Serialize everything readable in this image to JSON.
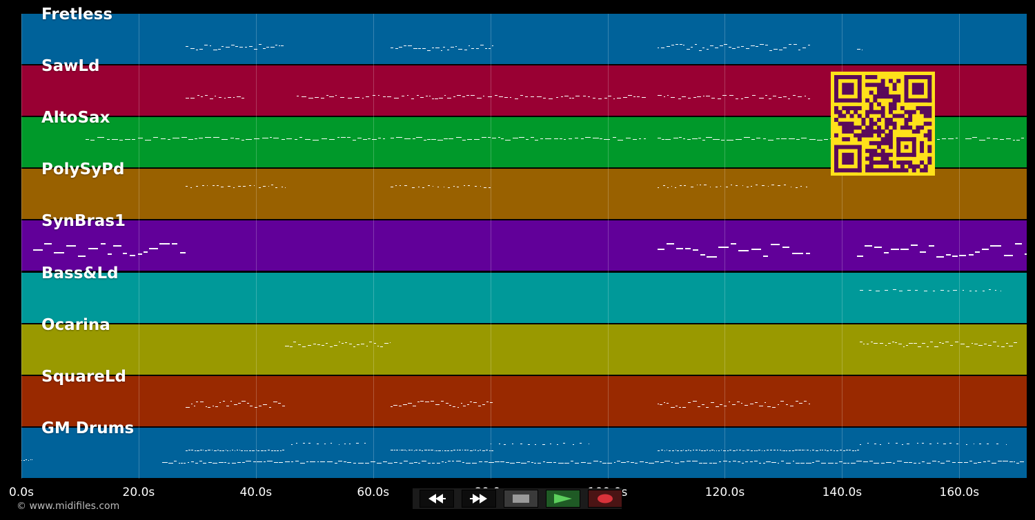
{
  "tracks": [
    {
      "name": "Fretless",
      "color": "#00629a"
    },
    {
      "name": "SawLd",
      "color": "#990033"
    },
    {
      "name": "AltoSax",
      "color": "#00992a"
    },
    {
      "name": "PolySyPd",
      "color": "#996100"
    },
    {
      "name": "SynBras1",
      "color": "#610099"
    },
    {
      "name": "Bass&Ld",
      "color": "#009999"
    },
    {
      "name": "Ocarina",
      "color": "#999900"
    },
    {
      "name": "SquareLd",
      "color": "#992900"
    },
    {
      "name": "GM Drums",
      "color": "#00629a"
    }
  ],
  "timeline": {
    "max_seconds": 171.5,
    "ticks": [
      "0.0s",
      "20.0s",
      "40.0s",
      "60.0s",
      "80.0s",
      "100.0s",
      "120.0s",
      "140.0s",
      "160.0s"
    ],
    "tick_values": [
      0,
      20,
      40,
      60,
      80,
      100,
      120,
      140,
      160
    ]
  },
  "overlay": {
    "qr_color": "#ffe11a",
    "qr_dark": "#5a0a5a"
  },
  "footer": {
    "copyright": "© www.midifiles.com"
  },
  "transport": {
    "rewind_icon": "rewind-icon",
    "forward_icon": "fast-forward-icon",
    "stop_icon": "stop-icon",
    "play_icon": "play-icon",
    "record_icon": "record-icon"
  }
}
